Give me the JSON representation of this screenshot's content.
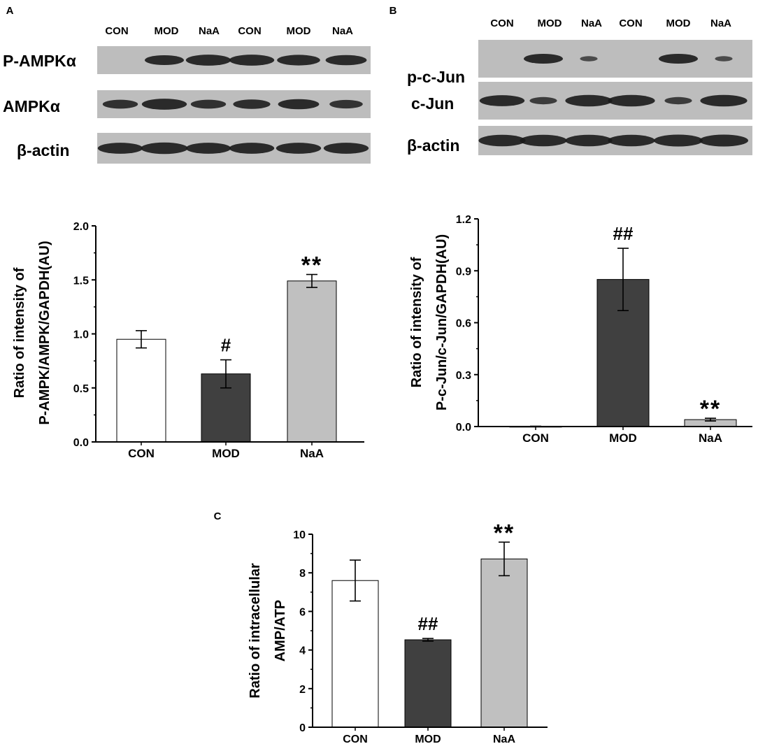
{
  "panels": {
    "A": {
      "letter": "A",
      "lanes": [
        "CON",
        "MOD",
        "NaA",
        "CON",
        "MOD",
        "NaA"
      ],
      "blot_rows": [
        "P-AMPKα",
        "AMPKα",
        "β-actin"
      ]
    },
    "B": {
      "letter": "B",
      "lanes": [
        "CON",
        "MOD",
        "NaA",
        "CON",
        "MOD",
        "NaA"
      ],
      "blot_rows": [
        "p-c-Jun",
        "c-Jun",
        "β-actin"
      ]
    },
    "C": {
      "letter": "C"
    }
  },
  "colors": {
    "CON": "#ffffff",
    "MOD": "#404040",
    "NaA": "#c0c0c0",
    "axis": "#000000"
  },
  "chart_data": [
    {
      "type": "bar",
      "panel": "A",
      "categories": [
        "CON",
        "MOD",
        "NaA"
      ],
      "values": [
        0.95,
        0.63,
        1.49
      ],
      "errors": [
        0.08,
        0.13,
        0.06
      ],
      "annotations": [
        "",
        "#",
        "**"
      ],
      "ylabel": [
        "Ratio of intensity of",
        "P-AMPK/AMPK/GAPDH(AU)"
      ],
      "yticks": [
        "0.0",
        "0.5",
        "1.0",
        "1.5",
        "2.0"
      ],
      "ylim": [
        0,
        2.0
      ]
    },
    {
      "type": "bar",
      "panel": "B",
      "categories": [
        "CON",
        "MOD",
        "NaA"
      ],
      "values": [
        0.0,
        0.85,
        0.04
      ],
      "errors": [
        0.002,
        0.18,
        0.008
      ],
      "annotations": [
        "",
        "##",
        "**"
      ],
      "ylabel": [
        "Ratio of intensity of",
        "P-c-Jun/c-Jun/GAPDH(AU)"
      ],
      "yticks": [
        "0.0",
        "0.3",
        "0.6",
        "0.9",
        "1.2"
      ],
      "ylim": [
        0,
        1.2
      ]
    },
    {
      "type": "bar",
      "panel": "C",
      "categories": [
        "CON",
        "MOD",
        "NaA"
      ],
      "values": [
        7.6,
        4.53,
        8.72
      ],
      "errors": [
        1.06,
        0.07,
        0.87
      ],
      "annotations": [
        "",
        "##",
        "**"
      ],
      "ylabel": [
        "Ratio of intracellular",
        "AMP/ATP"
      ],
      "yticks": [
        "0",
        "2",
        "4",
        "6",
        "8",
        "10"
      ],
      "ylim": [
        0,
        10
      ]
    }
  ]
}
